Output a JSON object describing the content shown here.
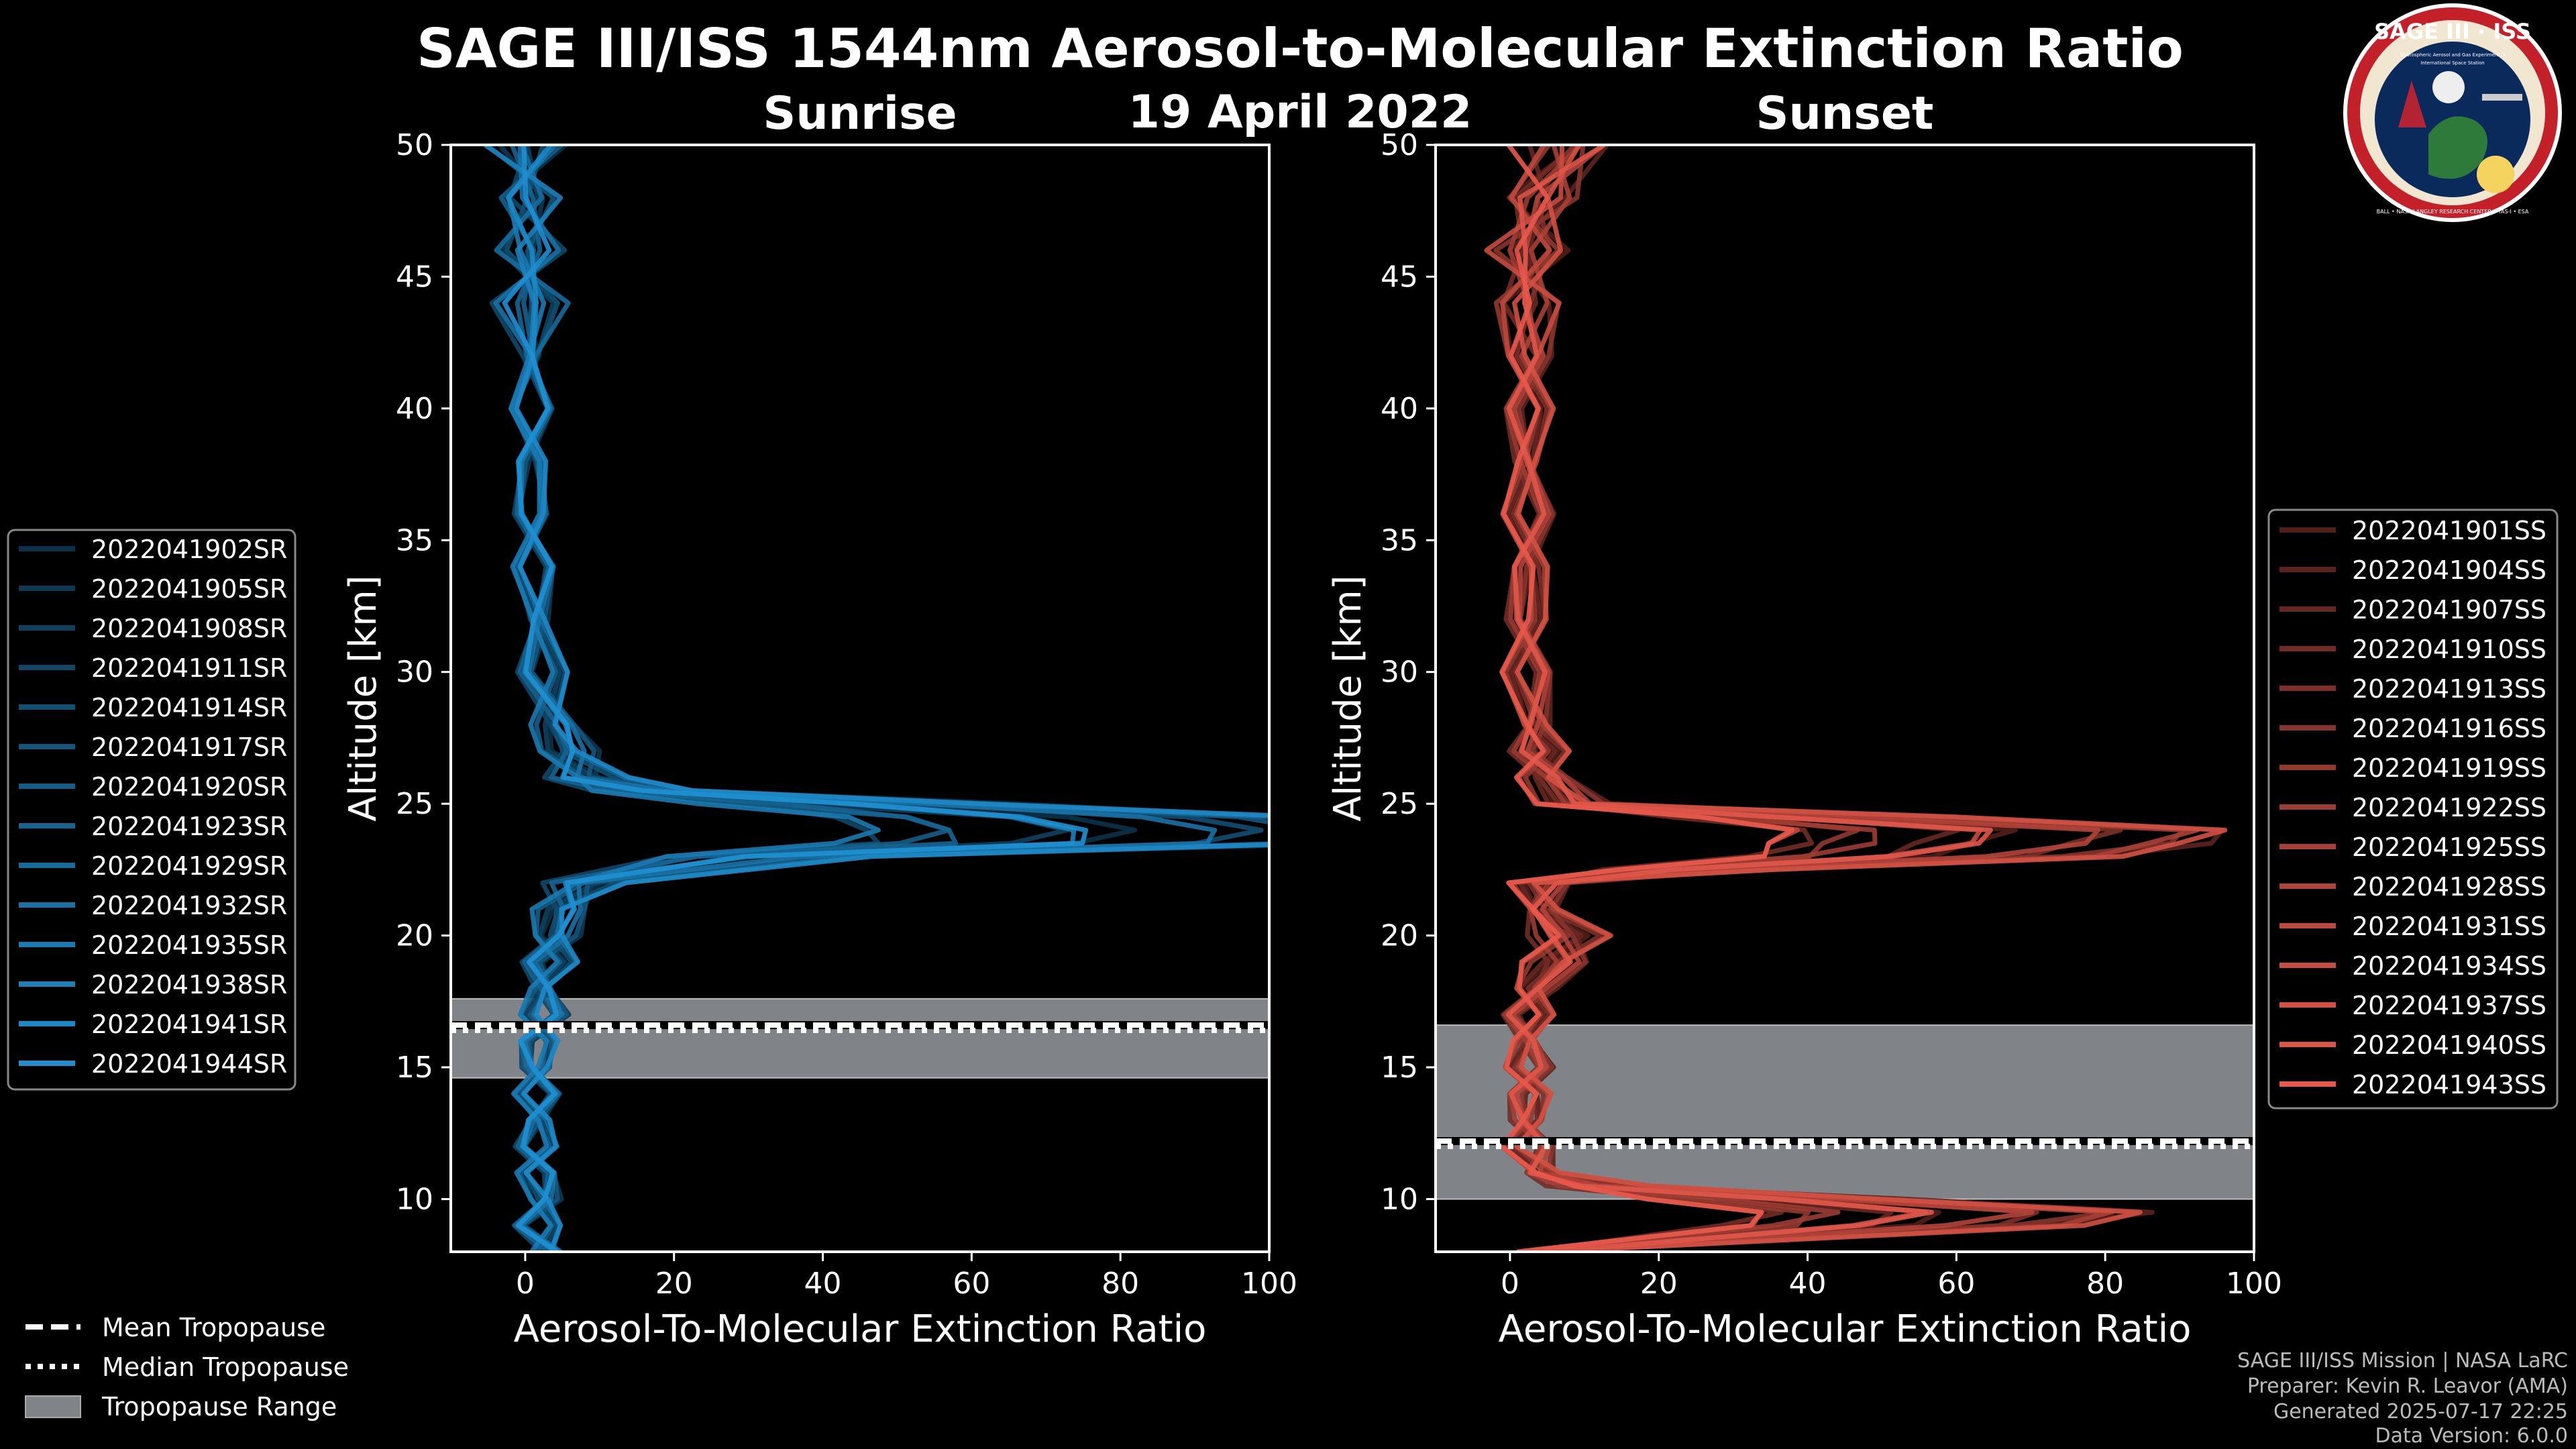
{
  "title": "SAGE III/ISS 1544nm Aerosol-to-Molecular Extinction Ratio",
  "date": "19 April 2022",
  "logo": {
    "name": "SAGE III · ISS",
    "tagline": "Stratospheric Aerosol and Gas Experiment III",
    "station": "International Space Station",
    "ring": "BALL • NASA LANGLEY RESEARCH CENTER • TAS-I • ESA"
  },
  "credits": {
    "mission": "SAGE III/ISS Mission | NASA LaRC",
    "preparer": "Preparer: Kevin R. Leavor (AMA)",
    "generated": "Generated 2025-07-17 22:25",
    "version": "Data Version: 6.0.0"
  },
  "colors": {
    "sunrise": "#1f8fd0",
    "sunset": "#e8594b",
    "tropopause_band": "#808488"
  },
  "bottom_legend": [
    {
      "style": "dashed",
      "label": "Mean Tropopause"
    },
    {
      "style": "dotted",
      "label": "Median Tropopause"
    },
    {
      "style": "patch",
      "label": "Tropopause Range"
    }
  ],
  "chart_data": [
    {
      "type": "line",
      "subtitle": "Sunrise",
      "xlabel": "Aerosol-To-Molecular Extinction Ratio",
      "ylabel": "Altitude [km]",
      "xlim": [
        -10,
        100
      ],
      "ylim": [
        8,
        50
      ],
      "xticks": [
        0,
        20,
        40,
        60,
        80,
        100
      ],
      "yticks": [
        10,
        15,
        20,
        25,
        30,
        35,
        40,
        45,
        50
      ],
      "legend": [
        "2022041902SR",
        "2022041905SR",
        "2022041908SR",
        "2022041911SR",
        "2022041914SR",
        "2022041917SR",
        "2022041920SR",
        "2022041923SR",
        "2022041929SR",
        "2022041932SR",
        "2022041935SR",
        "2022041938SR",
        "2022041941SR",
        "2022041944SR"
      ],
      "tropopause": {
        "mean": 16.6,
        "median": 16.4,
        "range": [
          14.6,
          17.6
        ]
      },
      "representative_profile": {
        "altitude": [
          8,
          9,
          10,
          11,
          12,
          13,
          14,
          15,
          16,
          17,
          18,
          19,
          20,
          21,
          22,
          23,
          23.5,
          24,
          24.5,
          25,
          25.5,
          26,
          27,
          28,
          30,
          32,
          34,
          36,
          38,
          40,
          42,
          44,
          46,
          48,
          50
        ],
        "ratio": [
          4,
          2,
          3,
          2,
          2,
          2,
          2,
          2,
          2,
          3,
          3,
          4,
          5,
          6,
          10,
          40,
          95,
          100,
          90,
          55,
          20,
          10,
          7,
          5,
          3,
          2,
          1.5,
          1,
          1,
          1,
          1,
          1,
          0.5,
          0.5,
          0
        ]
      }
    },
    {
      "type": "line",
      "subtitle": "Sunset",
      "xlabel": "Aerosol-To-Molecular Extinction Ratio",
      "ylabel": "Altitude [km]",
      "xlim": [
        -10,
        100
      ],
      "ylim": [
        8,
        50
      ],
      "xticks": [
        0,
        20,
        40,
        60,
        80,
        100
      ],
      "yticks": [
        10,
        15,
        20,
        25,
        30,
        35,
        40,
        45,
        50
      ],
      "legend": [
        "2022041901SS",
        "2022041904SS",
        "2022041907SS",
        "2022041910SS",
        "2022041913SS",
        "2022041916SS",
        "2022041919SS",
        "2022041922SS",
        "2022041925SS",
        "2022041928SS",
        "2022041931SS",
        "2022041934SS",
        "2022041937SS",
        "2022041940SS",
        "2022041943SS"
      ],
      "tropopause": {
        "mean": 12.2,
        "median": 12.0,
        "range": [
          10.0,
          16.6
        ]
      },
      "representative_profile": {
        "altitude": [
          8,
          9,
          9.5,
          10,
          10.5,
          11,
          12,
          13,
          14,
          15,
          16,
          17,
          18,
          19,
          20,
          21,
          22,
          22.5,
          23,
          23.5,
          24,
          24.5,
          25,
          26,
          27,
          28,
          30,
          32,
          34,
          36,
          38,
          40,
          42,
          44,
          46,
          48,
          50
        ],
        "ratio": [
          5,
          65,
          74,
          45,
          15,
          5,
          3,
          3,
          3,
          3,
          3,
          3,
          4,
          8,
          10,
          5,
          5,
          30,
          70,
          80,
          84,
          50,
          10,
          6,
          5,
          4,
          3,
          3,
          3,
          3,
          3,
          3,
          3,
          3,
          3,
          5,
          10
        ]
      }
    }
  ]
}
